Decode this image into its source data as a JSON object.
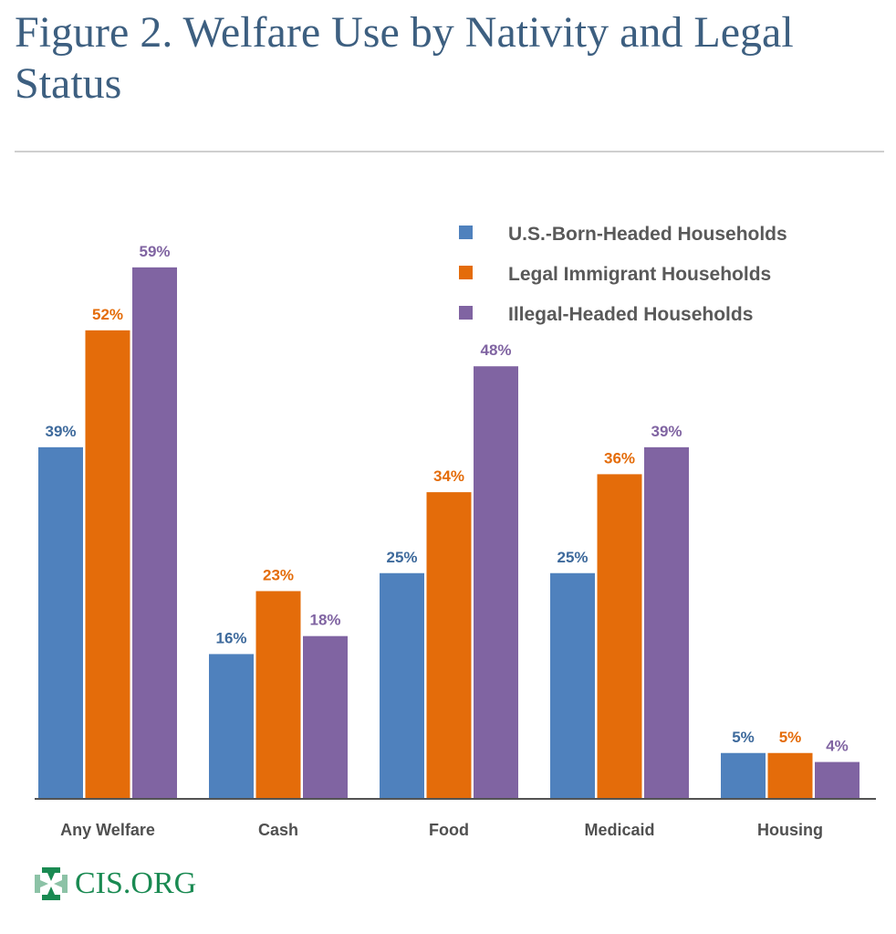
{
  "header": {
    "title": "Figure 2. Welfare Use by Nativity and Legal Status"
  },
  "footer": {
    "logo_icon": "cis-cross-icon",
    "logo_text": "CIS.ORG",
    "logo_color": "#1a8a52"
  },
  "chart_data": {
    "type": "bar",
    "title": "Figure 2. Welfare Use by Nativity and Legal Status",
    "xlabel": "",
    "ylabel": "",
    "ylim": [
      0,
      60
    ],
    "grid": false,
    "legend_position": "top-right",
    "categories": [
      "Any Welfare",
      "Cash",
      "Food",
      "Medicaid",
      "Housing"
    ],
    "series": [
      {
        "name": "U.S.-Born-Headed Households",
        "color": "#4f81bd",
        "label_color": "#3e6a9c",
        "values": [
          39,
          16,
          25,
          25,
          5
        ]
      },
      {
        "name": "Legal Immigrant Households",
        "color": "#e46c0a",
        "label_color": "#e46c0a",
        "values": [
          52,
          23,
          34,
          36,
          5
        ]
      },
      {
        "name": "Illegal-Headed Households",
        "color": "#8064a2",
        "label_color": "#8064a2",
        "values": [
          59,
          18,
          48,
          39,
          4
        ]
      }
    ],
    "data_labels": [
      [
        "39%",
        "16%",
        "25%",
        "25%",
        "5%"
      ],
      [
        "52%",
        "23%",
        "34%",
        "36%",
        "5%"
      ],
      [
        "59%",
        "18%",
        "48%",
        "39%",
        "4%"
      ]
    ]
  }
}
